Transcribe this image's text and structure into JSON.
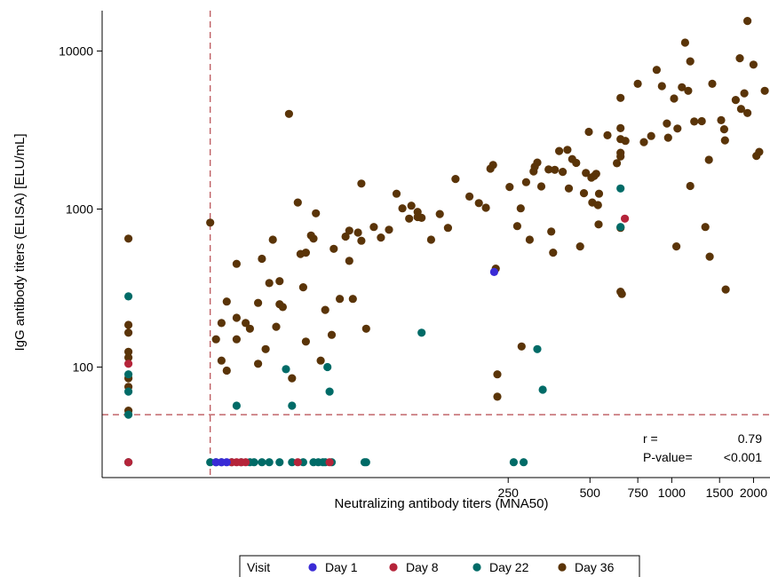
{
  "chart_data": {
    "type": "scatter",
    "title": "",
    "xlabel": "Neutralizing antibody titers (MNA50)",
    "ylabel": "IgG antibody titers (ELISA) [ELU/mL]",
    "x_scale": "log",
    "y_scale": "log",
    "xlim": [
      8,
      2300
    ],
    "ylim": [
      20,
      18000
    ],
    "x_ticks": [
      250,
      500,
      750,
      1000,
      1500,
      2000
    ],
    "y_ticks": [
      100,
      1000,
      10000
    ],
    "reference_lines": {
      "x": 20,
      "y": 50
    },
    "grid": false,
    "stats": {
      "r_label": "r =",
      "r_value": "0.79",
      "p_label": "P-value=",
      "p_value": "<0.001"
    },
    "legend": {
      "title": "Visit",
      "placement": "bottom-center"
    },
    "series": [
      {
        "name": "Day 1",
        "color": "#3a2bd6",
        "points": [
          [
            21,
            25
          ],
          [
            22,
            25
          ],
          [
            23,
            25
          ],
          [
            222,
            400
          ]
        ]
      },
      {
        "name": "Day 8",
        "color": "#b5243a",
        "points": [
          [
            10,
            105
          ],
          [
            10,
            25
          ],
          [
            24,
            25
          ],
          [
            25,
            25
          ],
          [
            26,
            25
          ],
          [
            27,
            25
          ],
          [
            42,
            25
          ],
          [
            55,
            25
          ],
          [
            672,
            870
          ]
        ]
      },
      {
        "name": "Day 22",
        "color": "#006b67",
        "points": [
          [
            10,
            280
          ],
          [
            10,
            90
          ],
          [
            10,
            70
          ],
          [
            10,
            50
          ],
          [
            10,
            25
          ],
          [
            20,
            25
          ],
          [
            21,
            25
          ],
          [
            22,
            25
          ],
          [
            24,
            25
          ],
          [
            26,
            25
          ],
          [
            28,
            25
          ],
          [
            29,
            25
          ],
          [
            31,
            25
          ],
          [
            33,
            25
          ],
          [
            36,
            25
          ],
          [
            40,
            25
          ],
          [
            44,
            25
          ],
          [
            48,
            25
          ],
          [
            50,
            25
          ],
          [
            52,
            25
          ],
          [
            53,
            25
          ],
          [
            56,
            25
          ],
          [
            74,
            25
          ],
          [
            75,
            25
          ],
          [
            25,
            57
          ],
          [
            38,
            97
          ],
          [
            40,
            57
          ],
          [
            54,
            100
          ],
          [
            55,
            70
          ],
          [
            120,
            165
          ],
          [
            320,
            130
          ],
          [
            335,
            72
          ],
          [
            262,
            25
          ],
          [
            285,
            25
          ],
          [
            648,
            1350
          ],
          [
            648,
            770
          ]
        ]
      },
      {
        "name": "Day 36",
        "color": "#5a3408",
        "points": [
          [
            10,
            650
          ],
          [
            10,
            185
          ],
          [
            10,
            165
          ],
          [
            10,
            125
          ],
          [
            10,
            115
          ],
          [
            10,
            85
          ],
          [
            10,
            75
          ],
          [
            10,
            53
          ],
          [
            10,
            25
          ],
          [
            20,
            820
          ],
          [
            21,
            150
          ],
          [
            22,
            190
          ],
          [
            22,
            110
          ],
          [
            23,
            260
          ],
          [
            23,
            95
          ],
          [
            25,
            450
          ],
          [
            25,
            205
          ],
          [
            25,
            150
          ],
          [
            27,
            190
          ],
          [
            28,
            175
          ],
          [
            30,
            105
          ],
          [
            30,
            255
          ],
          [
            31,
            485
          ],
          [
            32,
            130
          ],
          [
            33,
            340
          ],
          [
            34,
            640
          ],
          [
            35,
            180
          ],
          [
            36,
            250
          ],
          [
            36,
            350
          ],
          [
            37,
            240
          ],
          [
            39,
            4000
          ],
          [
            40,
            85
          ],
          [
            42,
            1100
          ],
          [
            43,
            520
          ],
          [
            44,
            320
          ],
          [
            45,
            145
          ],
          [
            45,
            530
          ],
          [
            47,
            680
          ],
          [
            48,
            650
          ],
          [
            49,
            940
          ],
          [
            51,
            110
          ],
          [
            53,
            230
          ],
          [
            56,
            160
          ],
          [
            57,
            560
          ],
          [
            60,
            270
          ],
          [
            63,
            670
          ],
          [
            65,
            470
          ],
          [
            65,
            730
          ],
          [
            67,
            270
          ],
          [
            70,
            710
          ],
          [
            72,
            1450
          ],
          [
            72,
            630
          ],
          [
            75,
            175
          ],
          [
            80,
            770
          ],
          [
            85,
            660
          ],
          [
            91,
            740
          ],
          [
            97,
            1250
          ],
          [
            102,
            1010
          ],
          [
            108,
            870
          ],
          [
            110,
            1050
          ],
          [
            116,
            960
          ],
          [
            116,
            890
          ],
          [
            120,
            880
          ],
          [
            130,
            640
          ],
          [
            140,
            930
          ],
          [
            150,
            760
          ],
          [
            160,
            1550
          ],
          [
            180,
            1200
          ],
          [
            195,
            1090
          ],
          [
            207,
            1020
          ],
          [
            215,
            1800
          ],
          [
            220,
            1900
          ],
          [
            225,
            420
          ],
          [
            228,
            90
          ],
          [
            228,
            65
          ],
          [
            253,
            1380
          ],
          [
            270,
            780
          ],
          [
            278,
            1010
          ],
          [
            280,
            135
          ],
          [
            291,
            1480
          ],
          [
            300,
            640
          ],
          [
            310,
            1730
          ],
          [
            313,
            1850
          ],
          [
            320,
            1970
          ],
          [
            331,
            1390
          ],
          [
            352,
            1780
          ],
          [
            360,
            720
          ],
          [
            366,
            530
          ],
          [
            371,
            1770
          ],
          [
            385,
            2330
          ],
          [
            397,
            1720
          ],
          [
            413,
            2370
          ],
          [
            418,
            1350
          ],
          [
            430,
            2070
          ],
          [
            445,
            1960
          ],
          [
            460,
            580
          ],
          [
            475,
            1260
          ],
          [
            483,
            1690
          ],
          [
            495,
            3080
          ],
          [
            506,
            1580
          ],
          [
            510,
            1100
          ],
          [
            518,
            1620
          ],
          [
            527,
            1670
          ],
          [
            535,
            1060
          ],
          [
            538,
            800
          ],
          [
            540,
            1250
          ],
          [
            580,
            2930
          ],
          [
            628,
            1950
          ],
          [
            648,
            5050
          ],
          [
            648,
            3250
          ],
          [
            648,
            2770
          ],
          [
            648,
            2270
          ],
          [
            648,
            2150
          ],
          [
            648,
            760
          ],
          [
            648,
            300
          ],
          [
            655,
            290
          ],
          [
            675,
            2700
          ],
          [
            750,
            6200
          ],
          [
            790,
            2650
          ],
          [
            840,
            2900
          ],
          [
            880,
            7600
          ],
          [
            920,
            6000
          ],
          [
            960,
            3480
          ],
          [
            970,
            2830
          ],
          [
            1020,
            5000
          ],
          [
            1040,
            580
          ],
          [
            1050,
            3230
          ],
          [
            1090,
            5900
          ],
          [
            1120,
            11300
          ],
          [
            1150,
            5600
          ],
          [
            1170,
            8600
          ],
          [
            1170,
            1400
          ],
          [
            1210,
            3580
          ],
          [
            1290,
            3600
          ],
          [
            1330,
            770
          ],
          [
            1370,
            2050
          ],
          [
            1380,
            500
          ],
          [
            1410,
            6200
          ],
          [
            1520,
            3650
          ],
          [
            1560,
            3200
          ],
          [
            1570,
            2720
          ],
          [
            1580,
            310
          ],
          [
            1720,
            4900
          ],
          [
            1780,
            9000
          ],
          [
            1800,
            4300
          ],
          [
            1850,
            5400
          ],
          [
            1900,
            15500
          ],
          [
            1900,
            4050
          ],
          [
            2000,
            8200
          ],
          [
            2050,
            2170
          ],
          [
            2100,
            2300
          ],
          [
            2200,
            5600
          ]
        ]
      }
    ]
  }
}
